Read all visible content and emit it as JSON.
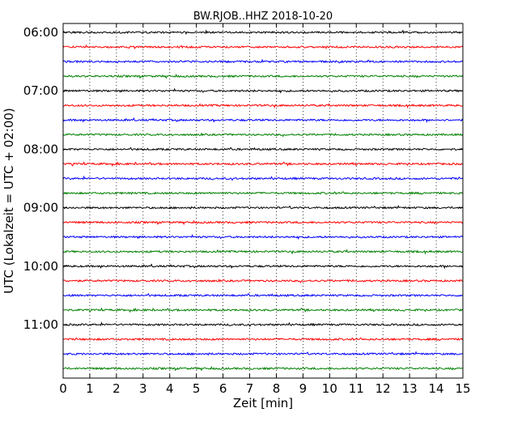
{
  "chart_data": {
    "type": "line",
    "title": "BW.RJOB..HHZ 2018-10-20",
    "xlabel": "Zeit  [min]",
    "ylabel": "UTC (Lokalzeit = UTC + 02:00)",
    "xlim": [
      0,
      15
    ],
    "x_ticks": [
      "0",
      "1",
      "2",
      "3",
      "4",
      "5",
      "6",
      "7",
      "8",
      "9",
      "10",
      "11",
      "12",
      "13",
      "14",
      "15"
    ],
    "y_tick_labels": [
      "06:00",
      "07:00",
      "08:00",
      "09:00",
      "10:00",
      "11:00"
    ],
    "grid": "vertical dotted",
    "trace_interval_minutes": 15,
    "start_time": "06:00",
    "trace_count": 24,
    "trace_colors": [
      "#000000",
      "#ff0000",
      "#0000ff",
      "#008000"
    ]
  }
}
